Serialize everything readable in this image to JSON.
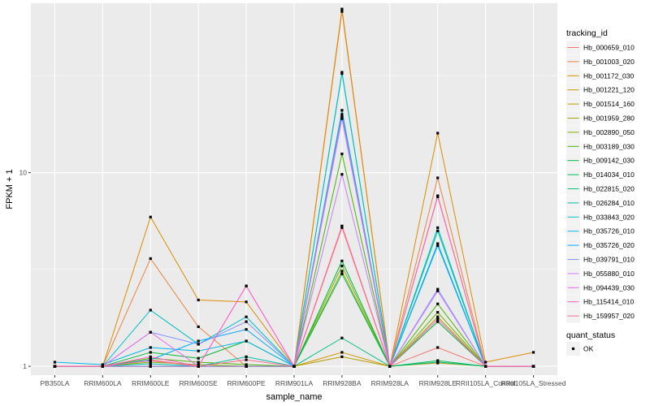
{
  "chart_data": {
    "type": "line",
    "xlabel": "sample_name",
    "ylabel": "FPKM + 1",
    "yscale": "log10",
    "ylim": [
      0.9,
      75
    ],
    "yticks": [
      1,
      10
    ],
    "ytick_labels": [
      "1",
      "10"
    ],
    "grid": true,
    "legend_position": "right",
    "categories": [
      "PB350LA",
      "RRIM600LA",
      "RRIM600LE",
      "RRIM600SE",
      "RRIM600PE",
      "RRIM901LA",
      "RRIM928BA",
      "RRIM928LA",
      "RRIM928LE",
      "RRII105LA_Control",
      "RRII105LA_Stressed"
    ],
    "color_legend_title": "tracking_id",
    "series": [
      {
        "name": "Hb_000659_010",
        "color": "#F8766D",
        "values": [
          1.0,
          1.0,
          1.08,
          1.0,
          1.0,
          1.0,
          5.2,
          1.0,
          1.25,
          1.0,
          1.0
        ]
      },
      {
        "name": "Hb_001003_020",
        "color": "#EE8043",
        "values": [
          1.0,
          1.0,
          3.6,
          1.6,
          1.0,
          1.0,
          68.0,
          1.0,
          9.4,
          1.0,
          1.0
        ]
      },
      {
        "name": "Hb_001172_030",
        "color": "#DE8C00",
        "values": [
          1.0,
          1.0,
          5.9,
          2.2,
          2.15,
          1.0,
          70.0,
          1.0,
          16.0,
          1.05,
          1.18
        ]
      },
      {
        "name": "Hb_001221_120",
        "color": "#CD9600",
        "values": [
          1.0,
          1.0,
          1.0,
          1.0,
          1.0,
          1.0,
          1.18,
          1.0,
          1.05,
          1.0,
          1.0
        ]
      },
      {
        "name": "Hb_001514_160",
        "color": "#B79F00",
        "values": [
          1.0,
          1.0,
          1.0,
          1.0,
          1.0,
          1.0,
          1.12,
          1.0,
          1.04,
          1.0,
          1.0
        ]
      },
      {
        "name": "Hb_001959_280",
        "color": "#9DA700",
        "values": [
          1.0,
          1.0,
          1.0,
          1.0,
          1.0,
          1.0,
          3.1,
          1.0,
          1.8,
          1.0,
          1.0
        ]
      },
      {
        "name": "Hb_002890_050",
        "color": "#7CAE00",
        "values": [
          1.0,
          1.0,
          1.05,
          1.02,
          1.0,
          1.0,
          3.3,
          1.0,
          1.9,
          1.0,
          1.0
        ]
      },
      {
        "name": "Hb_003189_030",
        "color": "#49B500",
        "values": [
          1.0,
          1.0,
          1.1,
          1.05,
          1.02,
          1.0,
          12.5,
          1.0,
          2.1,
          1.0,
          1.0
        ]
      },
      {
        "name": "Hb_009142_030",
        "color": "#00BA38",
        "values": [
          1.0,
          1.0,
          1.18,
          1.1,
          1.35,
          1.0,
          3.5,
          1.0,
          1.7,
          1.0,
          1.0
        ]
      },
      {
        "name": "Hb_014034_010",
        "color": "#00BD5C",
        "values": [
          1.0,
          1.0,
          1.0,
          1.0,
          1.0,
          1.0,
          3.0,
          1.0,
          1.07,
          1.0,
          1.0
        ]
      },
      {
        "name": "Hb_022815_020",
        "color": "#00C085",
        "values": [
          1.0,
          1.0,
          1.0,
          1.0,
          1.0,
          1.0,
          1.4,
          1.0,
          1.05,
          1.0,
          1.0
        ]
      },
      {
        "name": "Hb_026284_010",
        "color": "#00C1A7",
        "values": [
          1.0,
          1.0,
          1.03,
          1.0,
          1.12,
          1.0,
          33.0,
          1.0,
          5.0,
          1.0,
          1.0
        ]
      },
      {
        "name": "Hb_033843_020",
        "color": "#00BFC4",
        "values": [
          1.0,
          1.0,
          1.95,
          1.3,
          1.8,
          1.0,
          32.5,
          1.0,
          5.2,
          1.0,
          1.0
        ]
      },
      {
        "name": "Hb_035726_010",
        "color": "#00B8E5",
        "values": [
          1.05,
          1.02,
          1.25,
          1.2,
          1.35,
          1.0,
          21.0,
          1.0,
          4.3,
          1.0,
          1.0
        ]
      },
      {
        "name": "Hb_035726_020",
        "color": "#00A9FF",
        "values": [
          1.0,
          1.0,
          1.08,
          1.35,
          1.55,
          1.0,
          20.0,
          1.0,
          4.2,
          1.0,
          1.0
        ]
      },
      {
        "name": "Hb_039791_010",
        "color": "#8494FF",
        "values": [
          1.0,
          1.0,
          1.5,
          1.3,
          1.7,
          1.0,
          19.0,
          1.0,
          2.5,
          1.0,
          1.0
        ]
      },
      {
        "name": "Hb_055880_010",
        "color": "#C77CFF",
        "values": [
          1.0,
          1.0,
          1.0,
          1.0,
          1.0,
          1.0,
          9.8,
          1.0,
          2.45,
          1.0,
          1.0
        ]
      },
      {
        "name": "Hb_094439_030",
        "color": "#ED68ED",
        "values": [
          1.0,
          1.0,
          1.5,
          1.0,
          2.6,
          1.0,
          19.5,
          1.0,
          7.5,
          1.0,
          1.0
        ]
      },
      {
        "name": "Hb_115414_010",
        "color": "#FF61C3",
        "values": [
          1.0,
          1.0,
          1.12,
          1.0,
          2.6,
          1.0,
          5.3,
          1.0,
          1.75,
          1.0,
          1.0
        ]
      },
      {
        "name": "Hb_159957_020",
        "color": "#FF6C91",
        "values": [
          1.0,
          1.0,
          1.07,
          1.0,
          1.08,
          1.0,
          5.3,
          1.0,
          7.6,
          1.0,
          1.0
        ]
      }
    ],
    "shape_legend_title": "quant_status",
    "shape_legend_items": [
      "OK"
    ]
  },
  "colors": {
    "panel_background": "#EBEBEB",
    "gridline": "#FFFFFF",
    "point": "#000000"
  }
}
